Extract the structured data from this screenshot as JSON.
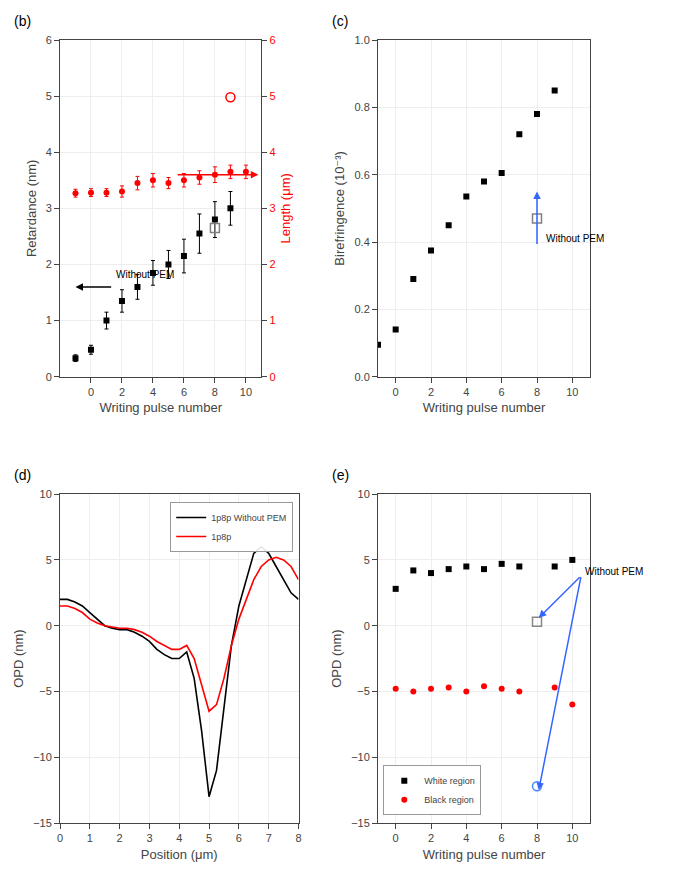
{
  "chart_data": [
    {
      "type": "scatter",
      "title": "(b)",
      "xlabel": "Writing pulse number",
      "ylabel": "Retardance (nm)",
      "y2label": "Length (μm)",
      "xlim": [
        -2,
        11
      ],
      "xticks": [
        0,
        2,
        4,
        6,
        8,
        10
      ],
      "ylim": [
        0,
        6
      ],
      "yticks": [
        0,
        1,
        2,
        3,
        4,
        5,
        6
      ],
      "y2lim": [
        0,
        6
      ],
      "y2ticks": [
        0,
        1,
        2,
        3,
        4,
        5,
        6
      ],
      "grid": true,
      "series": [
        {
          "axis": "y2",
          "color": "red",
          "marker": "circle",
          "x": [
            -1,
            0,
            1,
            2,
            3,
            4,
            5,
            6,
            7,
            8,
            9,
            10
          ],
          "values": [
            3.27,
            3.28,
            3.28,
            3.3,
            3.45,
            3.5,
            3.45,
            3.5,
            3.55,
            3.6,
            3.65,
            3.65
          ],
          "yerr": [
            0.07,
            0.07,
            0.07,
            0.1,
            0.12,
            0.12,
            0.1,
            0.12,
            0.12,
            0.14,
            0.12,
            0.12
          ]
        },
        {
          "axis": "y2",
          "color": "red",
          "marker": "circle-open",
          "x": [
            9
          ],
          "values": [
            4.98
          ]
        },
        {
          "color": "black",
          "marker": "square",
          "x": [
            -1,
            0,
            1,
            2,
            3,
            4,
            5,
            6,
            7,
            8,
            9,
            10
          ],
          "values": [
            0.33,
            0.48,
            1.0,
            1.35,
            1.6,
            1.85,
            2.0,
            2.15,
            2.55,
            2.8,
            3.0,
            null
          ],
          "yerr": [
            0.06,
            0.08,
            0.15,
            0.2,
            0.22,
            0.22,
            0.25,
            0.3,
            0.35,
            0.32,
            0.3,
            null
          ]
        },
        {
          "color": "gray",
          "marker": "square-open",
          "x": [
            8
          ],
          "values": [
            2.65
          ]
        }
      ],
      "annotations": [
        {
          "text": "Without PEM",
          "x": 1.5,
          "y": 1.82
        },
        {
          "arrow_from": [
            1.4,
            1.6
          ],
          "arrow_to": [
            -1.0,
            1.6
          ],
          "color": "black"
        },
        {
          "axis": "y2",
          "arrow_from": [
            5.5,
            3.6
          ],
          "arrow_to": [
            10.8,
            3.6
          ],
          "color": "red"
        }
      ]
    },
    {
      "type": "scatter",
      "title": "(c)",
      "xlabel": "Writing pulse number",
      "ylabel": "Birefringence (10⁻³)",
      "xlim": [
        -1,
        11
      ],
      "xticks": [
        0,
        2,
        4,
        6,
        8,
        10
      ],
      "ylim": [
        0.0,
        1.0
      ],
      "yticks": [
        {
          "value": 0.0,
          "label": "0.0"
        },
        0.2,
        0.4,
        0.6,
        0.8,
        {
          "value": 1.0,
          "label": "1.0"
        }
      ],
      "grid": true,
      "series": [
        {
          "color": "black",
          "marker": "square",
          "x": [
            -1,
            0,
            1,
            2,
            3,
            4,
            5,
            6,
            7,
            8,
            9,
            10
          ],
          "values": [
            0.095,
            0.14,
            0.29,
            0.375,
            0.45,
            0.535,
            0.58,
            0.605,
            0.72,
            0.78,
            0.85,
            null
          ]
        },
        {
          "color": "gray",
          "marker": "square-open",
          "x": [
            8
          ],
          "values": [
            0.47
          ]
        }
      ],
      "annotations": [
        {
          "arrow_from": [
            8,
            0.39
          ],
          "arrow_to": [
            8,
            0.55
          ],
          "color": "#3366ff"
        },
        {
          "text": "Without PEM",
          "x": 8.4,
          "y": 0.41
        }
      ]
    },
    {
      "type": "line",
      "title": "(d)",
      "xlabel": "Position (μm)",
      "ylabel": "OPD (nm)",
      "xlim": [
        0,
        8
      ],
      "xticks": [
        0,
        1,
        2,
        3,
        4,
        5,
        6,
        7,
        8
      ],
      "ylim": [
        -15,
        10
      ],
      "yticks": [
        -15,
        -10,
        -5,
        0,
        5,
        10
      ],
      "grid": true,
      "legend": "upper right",
      "series": [
        {
          "name": "1p8p Without PEM",
          "color": "black",
          "line_style": "solid",
          "x": [
            0.0,
            0.25,
            0.5,
            0.75,
            1.0,
            1.25,
            1.5,
            1.75,
            2.0,
            2.25,
            2.5,
            2.75,
            3.0,
            3.25,
            3.5,
            3.75,
            4.0,
            4.25,
            4.5,
            4.75,
            5.0,
            5.25,
            5.5,
            5.75,
            6.0,
            6.25,
            6.5,
            6.75,
            7.0,
            7.25,
            7.5,
            7.75,
            8.0
          ],
          "values": [
            2.0,
            2.0,
            1.8,
            1.5,
            1.0,
            0.5,
            0.0,
            -0.2,
            -0.3,
            -0.3,
            -0.5,
            -0.8,
            -1.2,
            -1.8,
            -2.2,
            -2.5,
            -2.5,
            -2.0,
            -4.0,
            -8.0,
            -13.0,
            -11.0,
            -6.0,
            -1.5,
            1.5,
            3.5,
            5.5,
            6.0,
            5.5,
            4.5,
            3.5,
            2.5,
            2.0
          ]
        },
        {
          "name": "1p8p",
          "color": "red",
          "line_style": "solid",
          "x": [
            0.0,
            0.25,
            0.5,
            0.75,
            1.0,
            1.25,
            1.5,
            1.75,
            2.0,
            2.25,
            2.5,
            2.75,
            3.0,
            3.25,
            3.5,
            3.75,
            4.0,
            4.25,
            4.5,
            4.75,
            5.0,
            5.25,
            5.5,
            5.75,
            6.0,
            6.25,
            6.5,
            6.75,
            7.0,
            7.25,
            7.5,
            7.75,
            8.0
          ],
          "values": [
            1.5,
            1.5,
            1.3,
            1.0,
            0.5,
            0.2,
            0.0,
            -0.1,
            -0.2,
            -0.2,
            -0.3,
            -0.5,
            -0.8,
            -1.2,
            -1.5,
            -1.8,
            -1.8,
            -1.5,
            -2.5,
            -4.5,
            -6.5,
            -6.0,
            -4.0,
            -1.5,
            0.5,
            2.0,
            3.5,
            4.5,
            5.0,
            5.2,
            5.0,
            4.5,
            3.5
          ]
        }
      ]
    },
    {
      "type": "scatter",
      "title": "(e)",
      "xlabel": "Writing pulse number",
      "ylabel": "OPD (nm)",
      "xlim": [
        -1,
        11
      ],
      "xticks": [
        0,
        2,
        4,
        6,
        8,
        10
      ],
      "ylim": [
        -15,
        10
      ],
      "yticks": [
        -15,
        -10,
        -5,
        0,
        5,
        10
      ],
      "grid": true,
      "legend": "lower left",
      "series": [
        {
          "name": "White region",
          "color": "black",
          "marker": "square",
          "x": [
            0,
            1,
            2,
            3,
            4,
            5,
            6,
            7,
            9,
            10
          ],
          "values": [
            2.8,
            4.2,
            4.0,
            4.3,
            4.5,
            4.3,
            4.7,
            4.5,
            4.5,
            5.0
          ]
        },
        {
          "name": "Black region",
          "color": "red",
          "marker": "circle",
          "x": [
            0,
            1,
            2,
            3,
            4,
            5,
            6,
            7,
            9,
            10
          ],
          "values": [
            -4.8,
            -5.0,
            -4.8,
            -4.7,
            -5.0,
            -4.6,
            -4.8,
            -5.0,
            -4.7,
            -6.0
          ]
        },
        {
          "color": "#888888",
          "marker": "square-open",
          "x": [
            8
          ],
          "values": [
            0.3
          ]
        },
        {
          "color": "#4488ff",
          "marker": "circle-open",
          "x": [
            8
          ],
          "values": [
            -12.2
          ]
        }
      ],
      "annotations": [
        {
          "arrow_from": [
            10.5,
            3.8
          ],
          "arrow_to": [
            8.1,
            0.6
          ],
          "color": "#3366ff"
        },
        {
          "arrow_from": [
            10.5,
            3.8
          ],
          "arrow_to": [
            8.1,
            -12.5
          ],
          "color": "#3366ff"
        },
        {
          "text": "Without PEM",
          "x": 10.6,
          "y": 4.1
        }
      ]
    }
  ]
}
